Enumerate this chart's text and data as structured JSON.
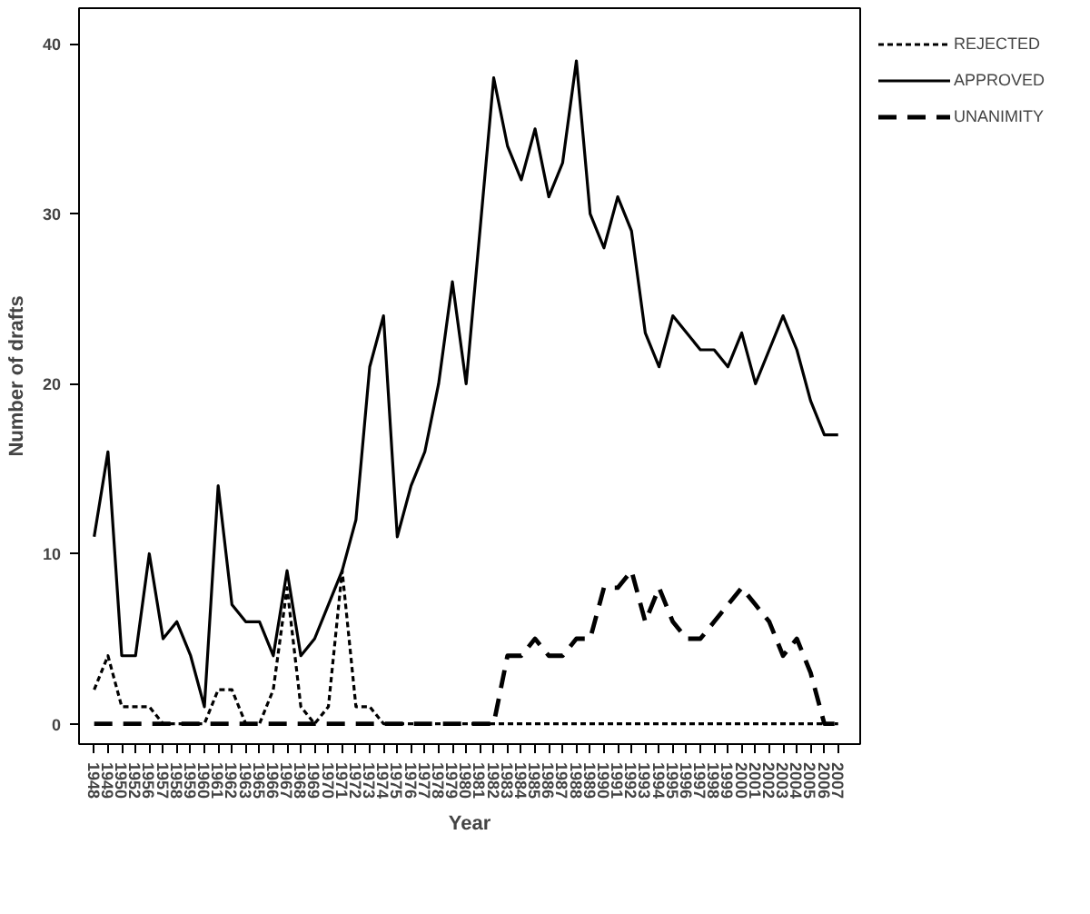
{
  "chart_data": {
    "type": "line",
    "xlabel": "Year",
    "ylabel": "Number of drafts",
    "categories": [
      "1948",
      "1949",
      "1950",
      "1952",
      "1956",
      "1957",
      "1958",
      "1959",
      "1960",
      "1961",
      "1962",
      "1963",
      "1965",
      "1966",
      "1967",
      "1968",
      "1969",
      "1970",
      "1971",
      "1972",
      "1973",
      "1974",
      "1975",
      "1976",
      "1977",
      "1978",
      "1979",
      "1980",
      "1981",
      "1982",
      "1983",
      "1984",
      "1985",
      "1986",
      "1987",
      "1988",
      "1989",
      "1990",
      "1991",
      "1992",
      "1993",
      "1994",
      "1995",
      "1996",
      "1997",
      "1998",
      "1999",
      "2000",
      "2001",
      "2002",
      "2003",
      "2004",
      "2005",
      "2006",
      "2007"
    ],
    "series": [
      {
        "name": "REJECTED",
        "color": "#000000",
        "line_style": "dotted",
        "values": [
          2,
          4,
          1,
          1,
          1,
          0,
          0,
          0,
          0,
          2,
          2,
          0,
          0,
          2,
          8,
          1,
          0,
          1,
          9,
          1,
          1,
          0,
          0,
          0,
          0,
          0,
          0,
          0,
          0,
          0,
          0,
          0,
          0,
          0,
          0,
          0,
          0,
          0,
          0,
          0,
          0,
          0,
          0,
          0,
          0,
          0,
          0,
          0,
          0,
          0,
          0,
          0,
          0,
          0,
          0
        ]
      },
      {
        "name": "APPROVED",
        "color": "#000000",
        "line_style": "solid",
        "values": [
          11,
          16,
          4,
          4,
          10,
          5,
          6,
          4,
          1,
          14,
          7,
          6,
          6,
          4,
          9,
          4,
          5,
          7,
          9,
          12,
          21,
          24,
          11,
          14,
          16,
          20,
          26,
          20,
          29,
          38,
          34,
          32,
          35,
          31,
          33,
          39,
          30,
          28,
          31,
          29,
          23,
          21,
          24,
          23,
          22,
          22,
          21,
          23,
          20,
          22,
          24,
          22,
          19,
          17,
          17
        ]
      },
      {
        "name": "UNANIMITY",
        "color": "#000000",
        "line_style": "dashed",
        "values": [
          0,
          0,
          0,
          0,
          0,
          0,
          0,
          0,
          0,
          0,
          0,
          0,
          0,
          0,
          0,
          0,
          0,
          0,
          0,
          0,
          0,
          0,
          0,
          0,
          0,
          0,
          0,
          0,
          0,
          0,
          4,
          4,
          5,
          4,
          4,
          5,
          5,
          8,
          8,
          9,
          6,
          8,
          6,
          5,
          5,
          6,
          7,
          8,
          7,
          6,
          4,
          5,
          3,
          0,
          0
        ]
      }
    ],
    "ylim": [
      -1.2,
      42.1
    ],
    "yticks": [
      0,
      10,
      20,
      30,
      40
    ],
    "grid": false,
    "legend": "top right"
  }
}
